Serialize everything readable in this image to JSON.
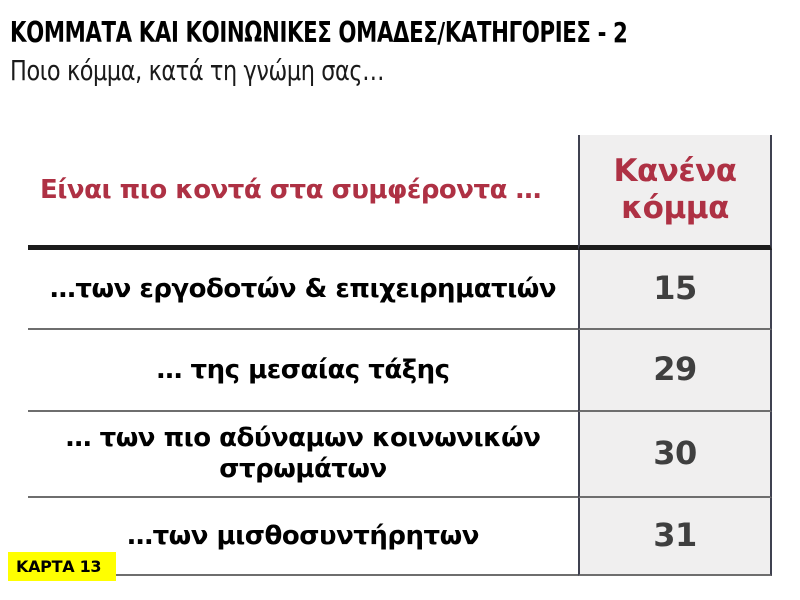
{
  "slide": {
    "title": "ΚΟΜΜΑΤΑ ΚΑΙ ΚΟΙΝΩΝΙΚΕΣ ΟΜΑΔΕΣ/ΚΑΤΗΓΟΡΙΕΣ - 2",
    "subtitle": "Ποιο κόμμα, κατά τη γνώμη σας…"
  },
  "table": {
    "header": {
      "question_label": "Είναι πιο κοντά στα συμφέροντα …",
      "column_label": "Κανένα κόμμα"
    },
    "rows": [
      {
        "label": "…των εργοδοτών & επιχειρηματιών",
        "value": "15"
      },
      {
        "label": "… της μεσαίας τάξης",
        "value": "29"
      },
      {
        "label": "… των πιο αδύναμων κοινωνικών στρωμάτων",
        "value": "30"
      },
      {
        "label": "…των μισθοσυντήρητων",
        "value": "31"
      }
    ]
  },
  "badge": {
    "label": "ΚΑΡΤΑ 13"
  },
  "colors": {
    "accent_red": "#ae3144",
    "value_gray": "#3f3f3f",
    "column_background": "#f0efef",
    "badge_yellow": "#ffff00",
    "thick_rule": "#1c1c1c",
    "thin_rule": "#6e6e6e",
    "column_border": "#3f4150"
  },
  "chart_data": {
    "type": "table",
    "title": "ΚΟΜΜΑΤΑ ΚΑΙ ΚΟΙΝΩΝΙΚΕΣ ΟΜΑΔΕΣ/ΚΑΤΗΓΟΡΙΕΣ - 2",
    "subtitle": "Ποιο κόμμα, κατά τη γνώμη σας…",
    "columns": [
      "Είναι πιο κοντά στα συμφέροντα …",
      "Κανένα κόμμα"
    ],
    "rows": [
      [
        "…των εργοδοτών & επιχειρηματιών",
        15
      ],
      [
        "… της μεσαίας τάξης",
        29
      ],
      [
        "… των πιο αδύναμων κοινωνικών στρωμάτων",
        30
      ],
      [
        "…των μισθοσυντήρητων",
        31
      ]
    ]
  }
}
